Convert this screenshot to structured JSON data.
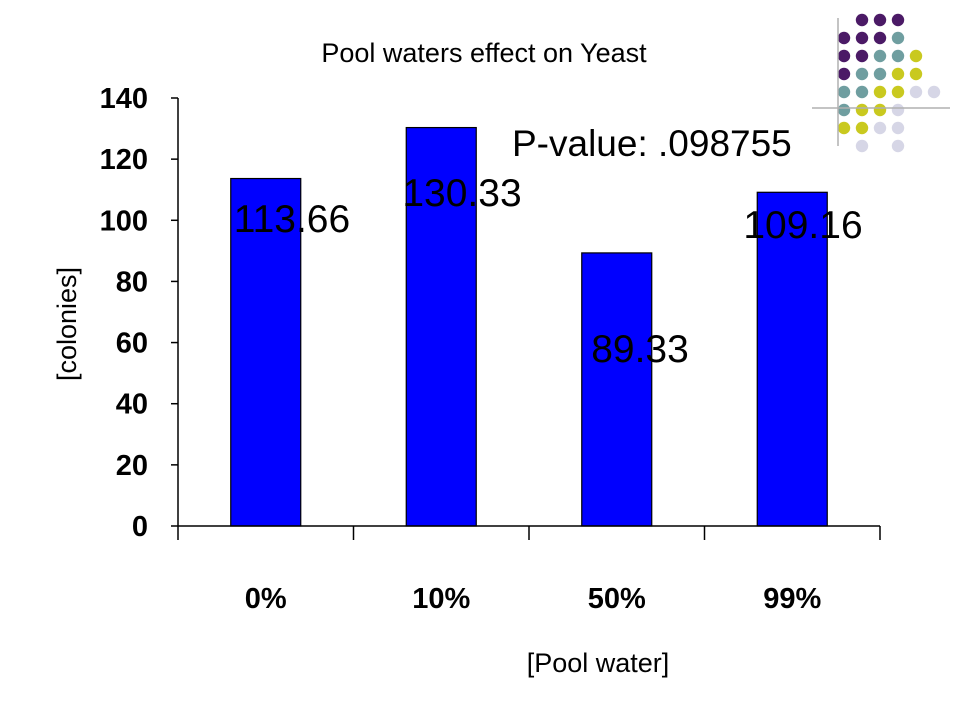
{
  "decoration": {
    "dot_colors": [
      "#4b1a66",
      "#6f9ea0",
      "#c9c91f",
      "#d6d6e6"
    ]
  },
  "chart_data": {
    "type": "bar",
    "title": "Pool waters effect on Yeast",
    "xlabel": "[Pool water]",
    "ylabel": "[colonies]",
    "categories": [
      "0%",
      "10%",
      "50%",
      "99%"
    ],
    "values": [
      113.66,
      130.33,
      89.33,
      109.16
    ],
    "data_labels": [
      "113.66",
      "130.33",
      "89.33",
      "109.16"
    ],
    "ylim": [
      0,
      140
    ],
    "yticks": [
      0,
      20,
      40,
      60,
      80,
      100,
      120,
      140
    ],
    "bar_color": "#0000ff",
    "grid": false,
    "legend": "none",
    "annotation": "P-value: .098755"
  }
}
